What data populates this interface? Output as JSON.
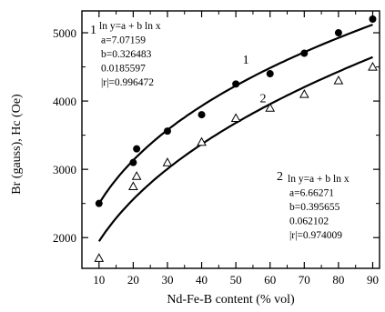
{
  "chart_data": {
    "type": "scatter",
    "xlabel": "Nd-Fe-B content (% vol)",
    "ylabel": "Br (gauss), Hc (Oe)",
    "xlim": [
      5,
      92
    ],
    "ylim": [
      1550,
      5320
    ],
    "xticks": [
      10,
      20,
      30,
      40,
      50,
      60,
      70,
      80,
      90
    ],
    "yticks": [
      2000,
      3000,
      4000,
      5000
    ],
    "grid": false,
    "series": [
      {
        "marker": "filled-circle",
        "curve_label": "1",
        "x": [
          10,
          20,
          21,
          30,
          40,
          50,
          60,
          70,
          80,
          90
        ],
        "y": [
          2500,
          3100,
          3300,
          3560,
          3800,
          4250,
          4400,
          4700,
          5000,
          5200
        ],
        "fit": {
          "a": 7.07159,
          "b": 0.326483
        }
      },
      {
        "marker": "open-triangle",
        "curve_label": "2",
        "x": [
          10,
          20,
          21,
          30,
          40,
          50,
          60,
          70,
          80,
          90
        ],
        "y": [
          1700,
          2750,
          2900,
          3100,
          3400,
          3750,
          3900,
          4100,
          4300,
          4500
        ],
        "fit": {
          "a": 6.66271,
          "b": 0.395655
        }
      }
    ],
    "annotations": [
      {
        "number": "1",
        "lines": [
          "ln y=a + b ln x",
          "a=7.07159",
          "b=0.326483",
          "0.0185597",
          "|r|=0.996472"
        ]
      },
      {
        "number": "2",
        "lines": [
          "ln y=a + b ln x",
          "a=6.66271",
          "b=0.395655",
          "0.062102",
          "|r|=0.974009"
        ]
      }
    ]
  }
}
